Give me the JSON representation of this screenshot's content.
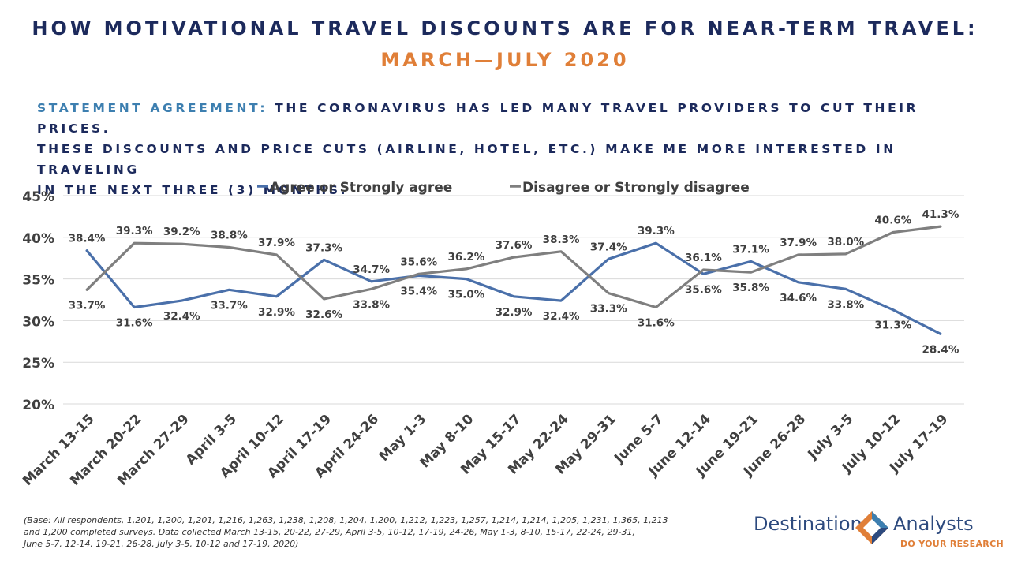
{
  "header": {
    "title": "HOW MOTIVATIONAL TRAVEL DISCOUNTS ARE FOR NEAR-TERM TRAVEL:",
    "subtitle": "MARCH—JULY 2020"
  },
  "statement": {
    "lead": "Statement agreement:",
    "line1": " The coronavirus has led many travel providers to cut their prices.",
    "line2": "These discounts and price cuts (airline, hotel, etc.) make me more interested in traveling",
    "line3": "in the next three (3) months."
  },
  "chart_data": {
    "type": "line",
    "categories": [
      "March 13-15",
      "March 20-22",
      "March 27-29",
      "April 3-5",
      "April 10-12",
      "April 17-19",
      "April 24-26",
      "May 1-3",
      "May 8-10",
      "May 15-17",
      "May 22-24",
      "May 29-31",
      "June 5-7",
      "June 12-14",
      "June 19-21",
      "June 26-28",
      "July 3-5",
      "July 10-12",
      "July 17-19"
    ],
    "series": [
      {
        "name": "Agree or Strongly agree",
        "color": "#4a70aa",
        "values": [
          38.4,
          31.6,
          32.4,
          33.7,
          32.9,
          37.3,
          34.7,
          35.4,
          35.0,
          32.9,
          32.4,
          37.4,
          39.3,
          35.6,
          37.1,
          34.6,
          33.8,
          31.3,
          28.4
        ],
        "labels": [
          "38.4%",
          "31.6%",
          "32.4%",
          "33.7%",
          "32.9%",
          "37.3%",
          "34.7%",
          "35.4%",
          "35.0%",
          "32.9%",
          "32.4%",
          "37.4%",
          "39.3%",
          "35.6%",
          "37.1%",
          "34.6%",
          "33.8%",
          "31.3%",
          "28.4%"
        ]
      },
      {
        "name": "Disagree or Strongly disagree",
        "color": "#7f7f7f",
        "values": [
          33.7,
          39.3,
          39.2,
          38.8,
          37.9,
          32.6,
          33.8,
          35.6,
          36.2,
          37.6,
          38.3,
          33.3,
          31.6,
          36.1,
          35.8,
          37.9,
          38.0,
          40.6,
          41.3
        ],
        "labels": [
          "33.7%",
          "39.3%",
          "39.2%",
          "38.8%",
          "37.9%",
          "32.6%",
          "33.8%",
          "35.6%",
          "36.2%",
          "37.6%",
          "38.3%",
          "33.3%",
          "31.6%",
          "36.1%",
          "35.8%",
          "37.9%",
          "38.0%",
          "40.6%",
          "41.3%"
        ]
      }
    ],
    "ylim": [
      20,
      45
    ],
    "yticks": [
      "20%",
      "25%",
      "30%",
      "35%",
      "40%",
      "45%"
    ],
    "grid": true,
    "legend": "top-center"
  },
  "footnote": {
    "line1": "(Base: All respondents, 1,201, 1,200, 1,201, 1,216, 1,263, 1,238, 1,208, 1,204, 1,200, 1,212, 1,223, 1,257, 1,214, 1,214, 1,205, 1,231, 1,365, 1,213",
    "line2": "and 1,200 completed surveys. Data collected March 13-15, 20-22, 27-29, April 3-5, 10-12, 17-19, 24-26, May 1-3, 8-10, 15-17, 22-24, 29-31,",
    "line3": "June 5-7, 12-14, 19-21, 26-28, July 3-5, 10-12 and 17-19, 2020)"
  },
  "logo": {
    "brand_left": "Destination",
    "brand_right": "Analysts",
    "tagline": "DO YOUR RESEARCH",
    "colors": {
      "navy": "#2d4a7e",
      "orange": "#e07f38",
      "blue": "#3d7fb0"
    }
  }
}
